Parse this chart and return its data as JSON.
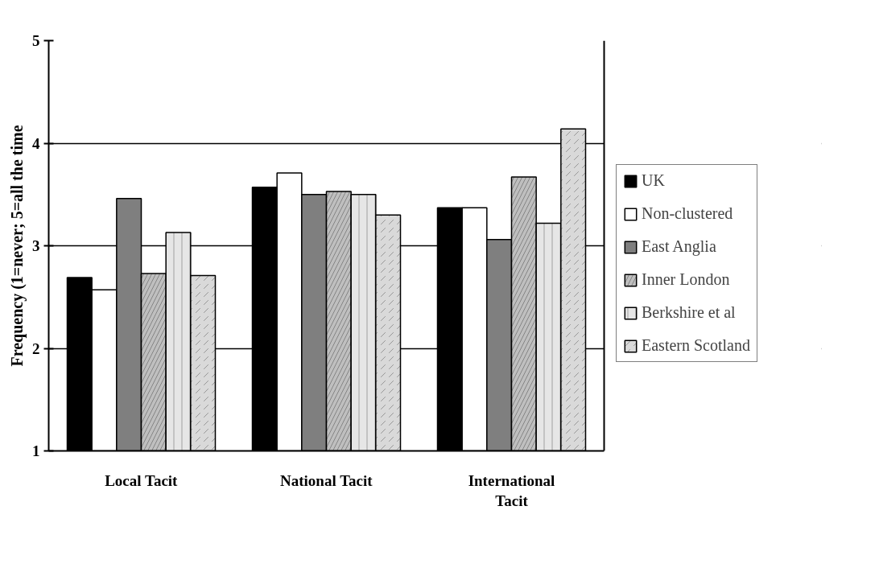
{
  "chart_data": {
    "type": "bar",
    "ylabel": "Frequency (1=never; 5=all the time",
    "categories": [
      "Local Tacit",
      "National Tacit",
      "International Tacit"
    ],
    "series": [
      {
        "name": "UK",
        "color": "#000000",
        "values": [
          2.69,
          3.57,
          3.37
        ]
      },
      {
        "name": "Non-clustered",
        "color": "#ffffff",
        "values": [
          2.57,
          3.71,
          3.37
        ]
      },
      {
        "name": "East Anglia",
        "color": "#7f7f7f",
        "values": [
          3.46,
          3.5,
          3.06
        ]
      },
      {
        "name": "Inner London",
        "color": "#bfbfbf",
        "values": [
          2.73,
          3.53,
          3.67
        ]
      },
      {
        "name": "Berkshire et al",
        "color": "#e6e6e6",
        "values": [
          3.13,
          3.5,
          3.22
        ]
      },
      {
        "name": "Eastern Scotland",
        "color": "#d9d9d9",
        "values": [
          2.71,
          3.3,
          4.14
        ]
      }
    ],
    "ylim": [
      1,
      5
    ],
    "yticks": [
      1,
      2,
      3,
      4,
      5
    ],
    "grid": "y",
    "legend": "right"
  }
}
